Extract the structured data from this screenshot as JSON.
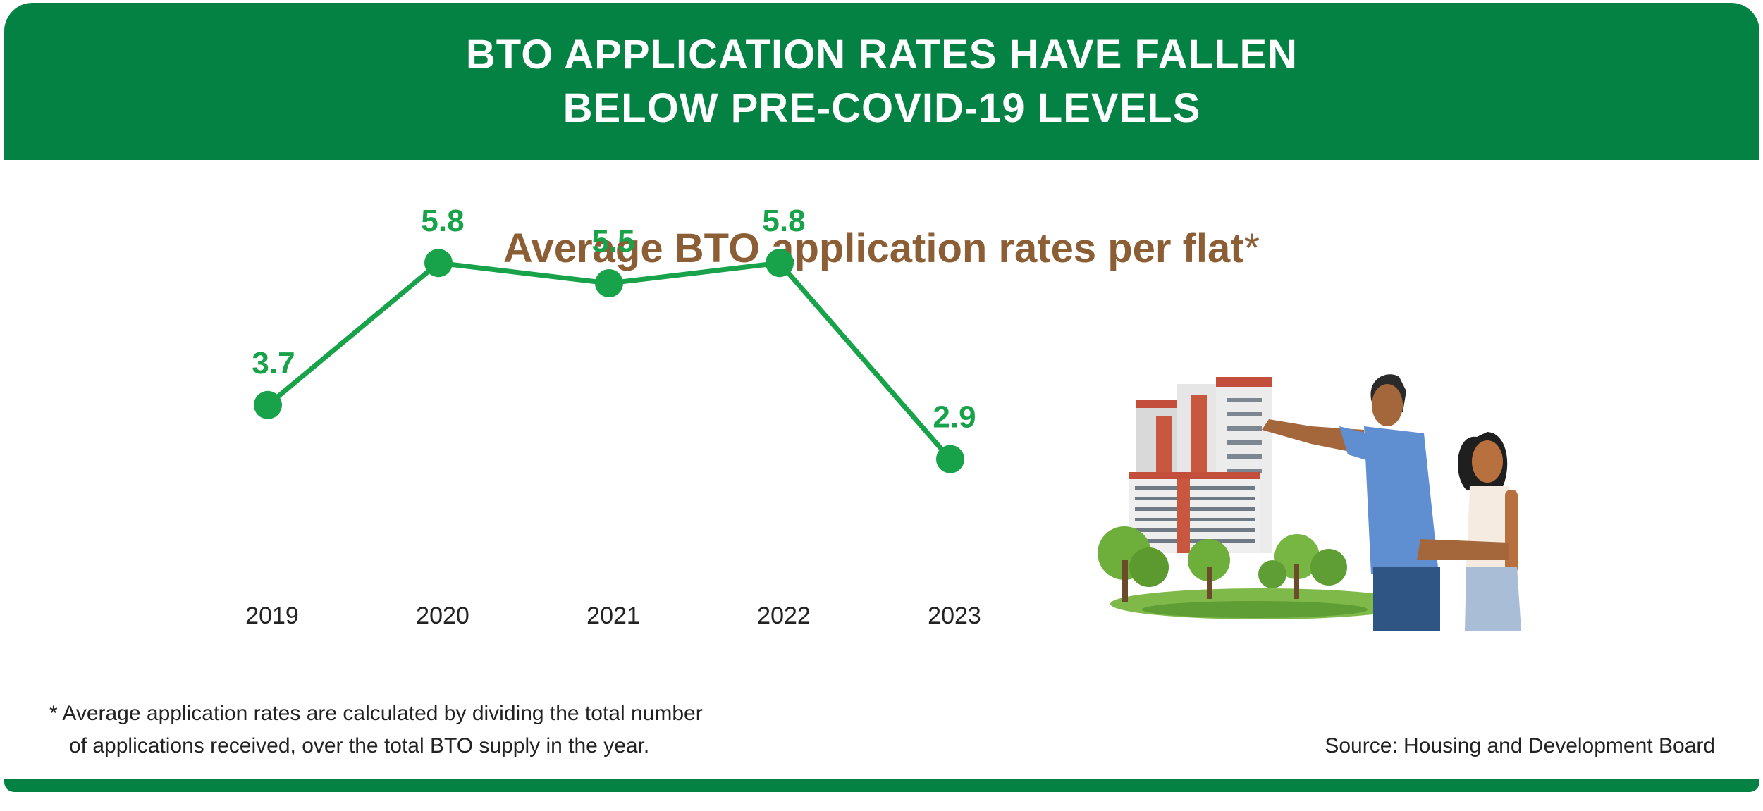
{
  "header": {
    "title_line1": "BTO APPLICATION RATES HAVE FALLEN",
    "title_line2": "BELOW PRE-COVID-19 LEVELS"
  },
  "subtitle": {
    "text": "Average BTO application rates per flat",
    "asterisk": "*"
  },
  "footnote": {
    "line1": "* Average application rates are calculated by dividing the total number",
    "line2": "of applications received, over the total BTO supply in the year."
  },
  "source": "Source: Housing and Development Board",
  "illustration": {
    "icon": "couple-looking-at-hdb-blocks-illustration"
  },
  "colors": {
    "brand_green": "#048243",
    "line_green": "#18a24a",
    "subtitle_brown": "#8b5e36",
    "text_dark": "#222222"
  },
  "chart_data": {
    "type": "line",
    "title": "Average BTO application rates per flat*",
    "categories": [
      "2019",
      "2020",
      "2021",
      "2022",
      "2023"
    ],
    "series": [
      {
        "values": [
          3.7,
          5.8,
          5.5,
          5.8,
          2.9
        ]
      }
    ],
    "data_labels": [
      "3.7",
      "5.8",
      "5.5",
      "5.8",
      "2.9"
    ],
    "xlabel": "",
    "ylabel": "",
    "grid": false,
    "show_y_axis": false,
    "ylim": [
      0,
      8
    ]
  }
}
